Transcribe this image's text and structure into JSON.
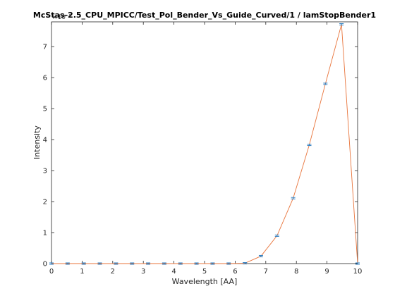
{
  "chart_data": {
    "type": "line",
    "title": "McStas-2.5_CPU_MPICC/Test_Pol_Bender_Vs_Guide_Curved/1 / lamStopBender1",
    "xlabel": "Wavelength [AA]",
    "ylabel": "Intensity",
    "y_multiplier_label": "×10⁻⁵",
    "xlim": [
      0,
      10
    ],
    "ylim": [
      0,
      7.8
    ],
    "x_ticks": [
      0,
      1,
      2,
      3,
      4,
      5,
      6,
      7,
      8,
      9,
      10
    ],
    "y_ticks": [
      0,
      1,
      2,
      3,
      4,
      5,
      6,
      7
    ],
    "grid": false,
    "series": [
      {
        "color": "#e8743b",
        "errorbar_color": "#2f7fc1",
        "x": [
          0.0,
          0.526,
          1.053,
          1.579,
          2.105,
          2.632,
          3.158,
          3.684,
          4.211,
          4.737,
          5.263,
          5.789,
          6.316,
          6.842,
          7.368,
          7.895,
          8.421,
          8.947,
          9.474,
          10.0
        ],
        "y": [
          0,
          0,
          0,
          0,
          0,
          0,
          0,
          0,
          0,
          0,
          0,
          0,
          0.01,
          0.24,
          0.9,
          2.11,
          3.83,
          5.8,
          7.72,
          0
        ]
      }
    ]
  }
}
